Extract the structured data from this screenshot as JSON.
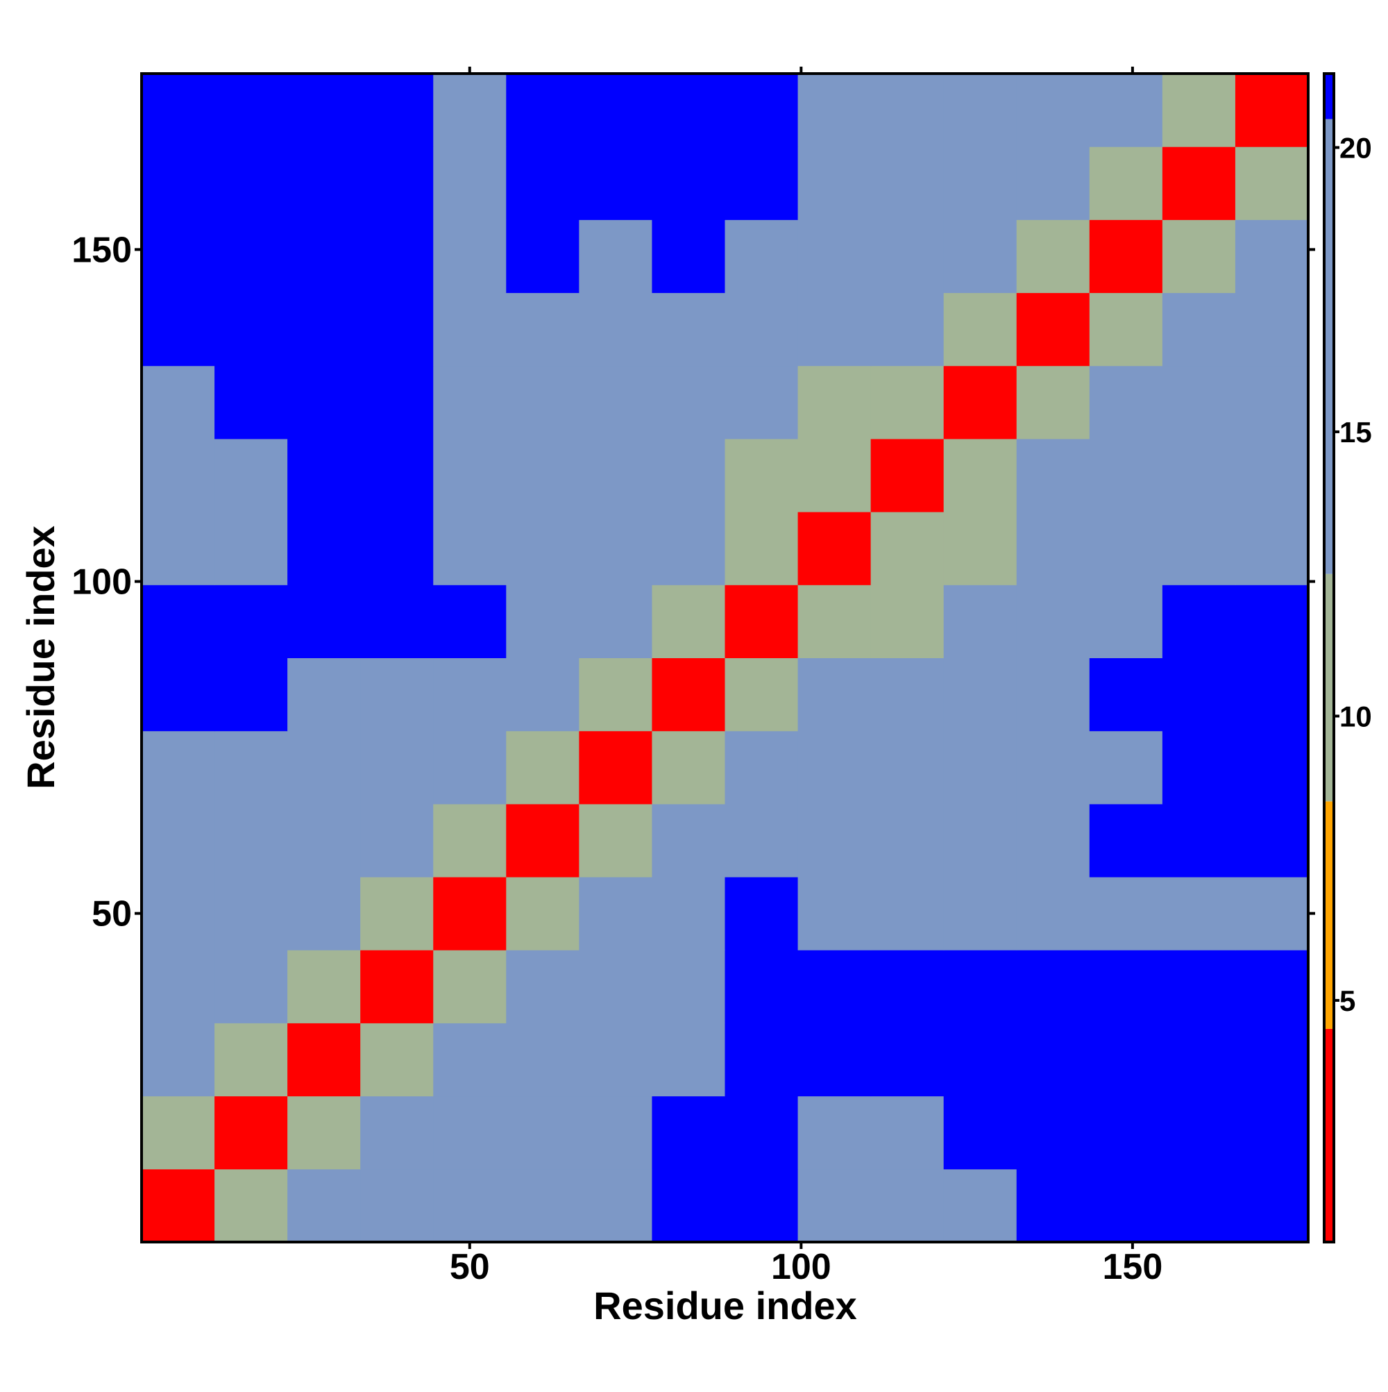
{
  "chart_data": {
    "type": "heatmap",
    "x_label": "Residue index",
    "y_label": "Residue index",
    "x_bins": [
      0.5,
      11.5,
      22.5,
      33.5,
      44.5,
      55.5,
      66.5,
      77.5,
      88.5,
      99.5,
      110.5,
      121.5,
      132.5,
      143.5,
      154.5,
      165.5,
      176.5
    ],
    "y_bins": [
      0.5,
      11.5,
      22.5,
      33.5,
      44.5,
      55.5,
      66.5,
      77.5,
      88.5,
      99.5,
      110.5,
      121.5,
      132.5,
      143.5,
      154.5,
      165.5,
      176.5
    ],
    "values": [
      [
        4,
        11,
        13,
        16,
        15,
        14,
        19,
        21,
        21,
        17,
        17,
        20,
        21,
        21,
        21,
        21
      ],
      [
        11,
        4,
        11,
        14,
        15,
        14,
        17,
        21,
        21,
        19,
        19,
        21,
        21,
        21,
        21,
        21
      ],
      [
        13,
        11,
        4,
        11,
        14,
        15,
        16,
        19,
        21,
        21,
        21,
        21,
        21,
        21,
        21,
        21
      ],
      [
        16,
        14,
        11,
        4,
        11,
        13,
        14,
        16,
        21,
        21,
        21,
        21,
        21,
        21,
        21,
        21
      ],
      [
        15,
        15,
        14,
        11,
        4,
        11,
        14,
        16,
        21,
        16,
        16,
        17,
        19,
        17,
        18,
        19
      ],
      [
        14,
        14,
        15,
        13,
        11,
        4,
        11,
        13,
        16,
        17,
        16,
        17,
        19,
        21,
        21,
        21
      ],
      [
        19,
        17,
        16,
        14,
        14,
        11,
        4,
        11,
        14,
        17,
        16,
        15,
        15,
        15,
        21,
        21
      ],
      [
        21,
        21,
        19,
        16,
        16,
        13,
        11,
        4,
        11,
        13,
        16,
        15,
        15,
        21,
        21,
        21
      ],
      [
        21,
        21,
        21,
        21,
        21,
        16,
        14,
        11,
        4,
        11,
        12,
        14,
        14,
        16,
        21,
        21
      ],
      [
        17,
        19,
        21,
        21,
        16,
        17,
        17,
        13,
        11,
        4,
        11,
        12,
        15,
        17,
        16,
        17
      ],
      [
        17,
        19,
        21,
        21,
        16,
        16,
        16,
        16,
        12,
        11,
        4,
        11,
        13,
        16,
        14,
        14
      ],
      [
        20,
        21,
        21,
        21,
        17,
        17,
        15,
        15,
        14,
        12,
        11,
        4,
        11,
        13,
        15,
        15
      ],
      [
        21,
        21,
        21,
        21,
        19,
        19,
        15,
        15,
        14,
        15,
        13,
        11,
        4,
        11,
        14,
        15
      ],
      [
        21,
        21,
        21,
        21,
        17,
        21,
        15,
        21,
        16,
        17,
        16,
        13,
        11,
        4,
        11,
        14
      ],
      [
        21,
        21,
        21,
        21,
        18,
        21,
        21,
        21,
        21,
        16,
        14,
        15,
        14,
        11,
        4,
        11
      ],
      [
        21,
        21,
        21,
        21,
        19,
        21,
        21,
        21,
        21,
        17,
        14,
        15,
        15,
        14,
        11,
        4
      ]
    ],
    "xlim": [
      0.5,
      176.5
    ],
    "ylim": [
      0.5,
      176.5
    ],
    "xticks": [
      50,
      100,
      150
    ],
    "yticks": [
      50,
      100,
      150
    ],
    "zlim": [
      0.75,
      21.3
    ],
    "zticks": [
      5,
      10,
      15,
      20
    ],
    "colorscale": [
      {
        "value": 4.5,
        "color": "#ff0000"
      },
      {
        "value": 8.5,
        "color": "#ffa500"
      },
      {
        "value": 12.5,
        "color": "#a3b596"
      },
      {
        "value": 20.5,
        "color": "#7d98c6"
      },
      {
        "value": 21.3,
        "color": "#0000ff"
      }
    ]
  }
}
